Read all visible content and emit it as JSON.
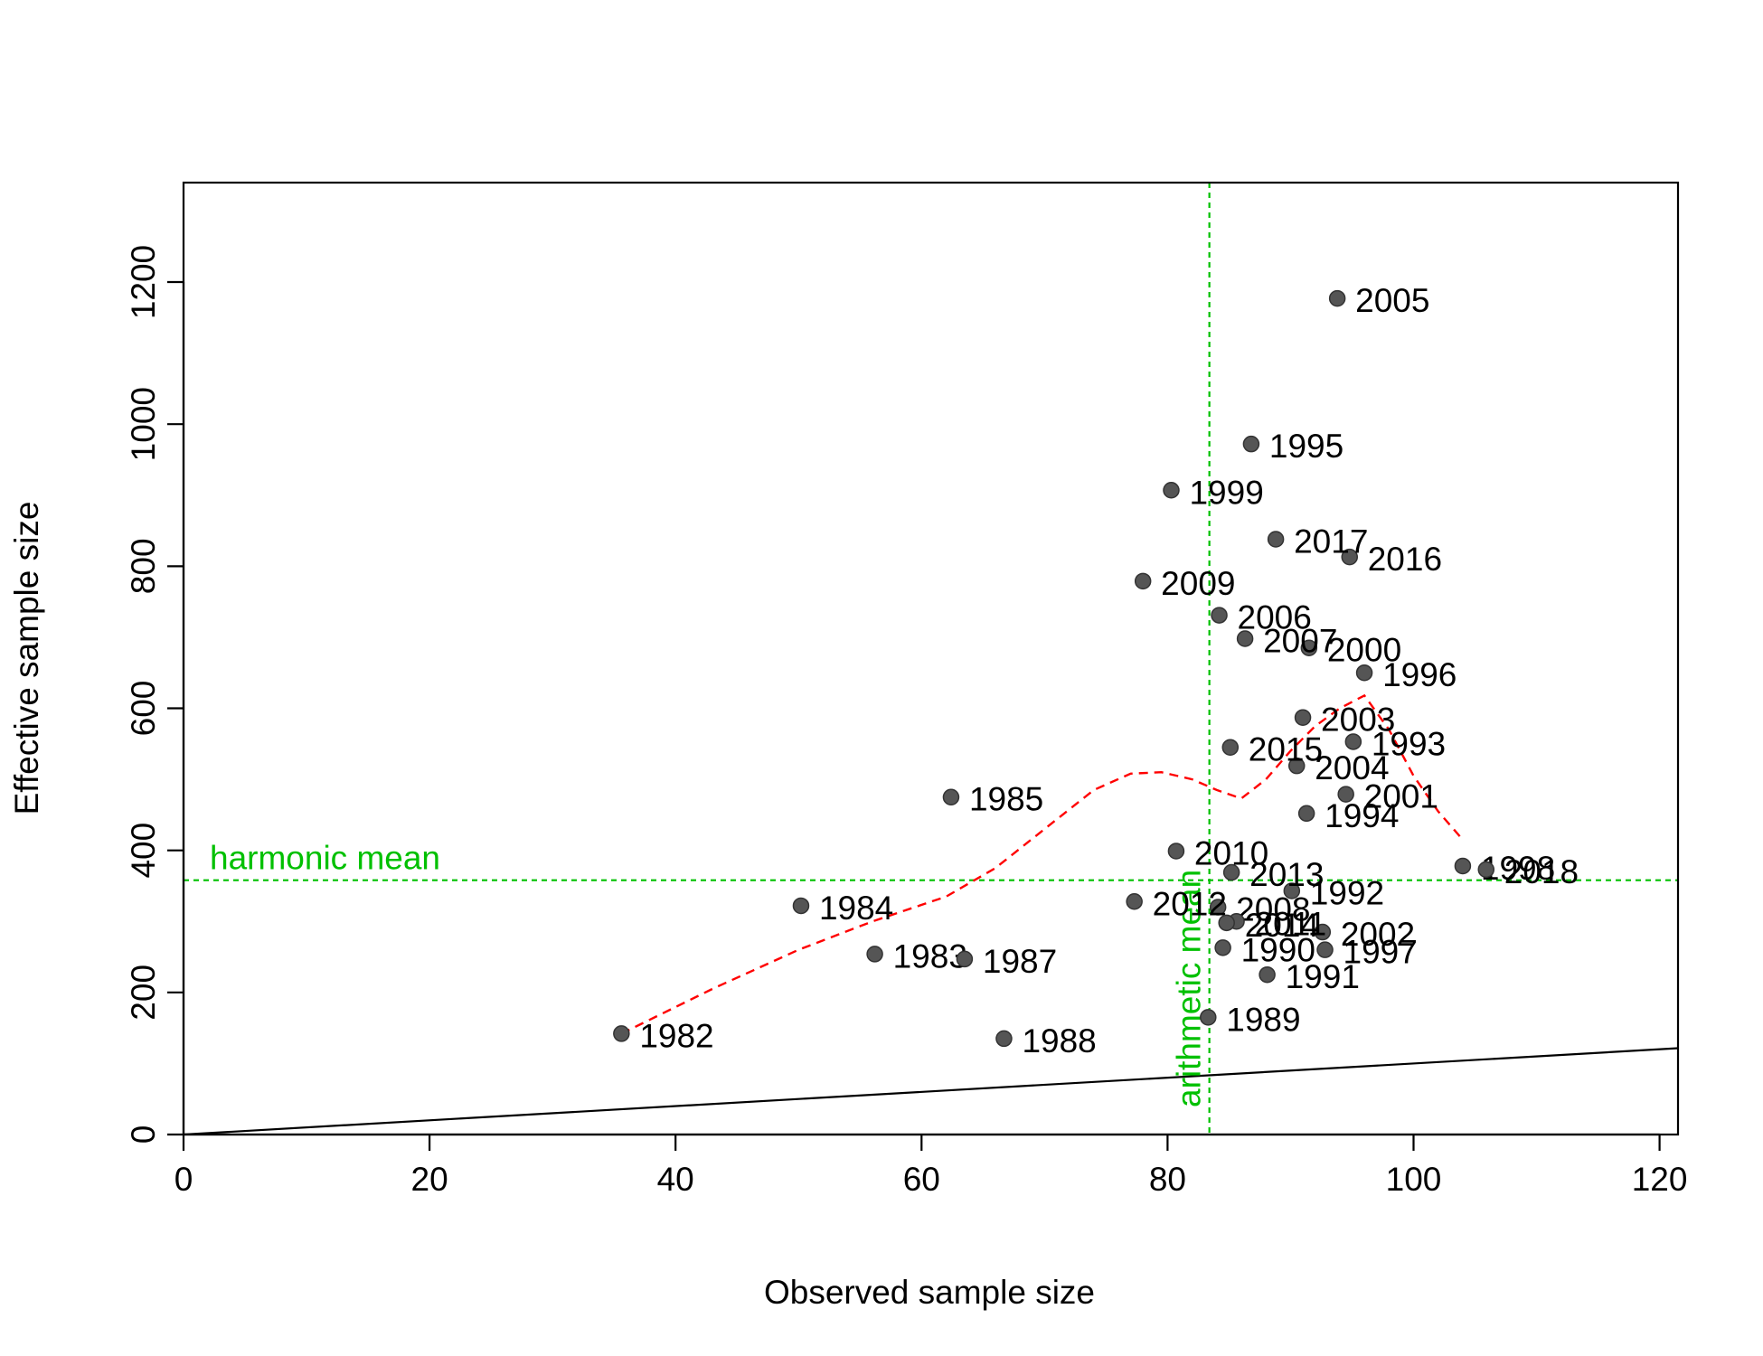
{
  "chart_data": {
    "type": "scatter",
    "title": "",
    "xlabel": "Observed sample size",
    "ylabel": "Effective sample size",
    "xlim": [
      0,
      121.5
    ],
    "ylim": [
      0,
      1340
    ],
    "xticks": [
      0,
      20,
      40,
      60,
      80,
      100,
      120
    ],
    "yticks": [
      0,
      200,
      400,
      600,
      800,
      1000,
      1200
    ],
    "grid": false,
    "colors": {
      "points": "#555555",
      "point_edge": "#333333",
      "smoother": "#ff0000",
      "reference": "#00c000",
      "one_to_one": "#000000"
    },
    "points": [
      {
        "label": "1982",
        "x": 35.6,
        "y": 142
      },
      {
        "label": "1983",
        "x": 56.2,
        "y": 254
      },
      {
        "label": "1984",
        "x": 50.2,
        "y": 322
      },
      {
        "label": "1985",
        "x": 62.4,
        "y": 475
      },
      {
        "label": "1987",
        "x": 63.5,
        "y": 247
      },
      {
        "label": "1988",
        "x": 66.7,
        "y": 135
      },
      {
        "label": "1989",
        "x": 83.3,
        "y": 165
      },
      {
        "label": "1990",
        "x": 84.5,
        "y": 263
      },
      {
        "label": "1991",
        "x": 88.1,
        "y": 225
      },
      {
        "label": "1992",
        "x": 90.1,
        "y": 343
      },
      {
        "label": "1993",
        "x": 95.1,
        "y": 553
      },
      {
        "label": "1994",
        "x": 91.3,
        "y": 452
      },
      {
        "label": "1995",
        "x": 86.8,
        "y": 972
      },
      {
        "label": "1996",
        "x": 96.0,
        "y": 650
      },
      {
        "label": "1997",
        "x": 92.8,
        "y": 260
      },
      {
        "label": "1998",
        "x": 104.0,
        "y": 378
      },
      {
        "label": "1999",
        "x": 80.3,
        "y": 907
      },
      {
        "label": "2000",
        "x": 91.5,
        "y": 685
      },
      {
        "label": "2001",
        "x": 94.5,
        "y": 479
      },
      {
        "label": "2002",
        "x": 92.6,
        "y": 285
      },
      {
        "label": "2003",
        "x": 91.0,
        "y": 587
      },
      {
        "label": "2004",
        "x": 90.5,
        "y": 519
      },
      {
        "label": "2005",
        "x": 93.8,
        "y": 1177
      },
      {
        "label": "2006",
        "x": 84.2,
        "y": 731
      },
      {
        "label": "2007",
        "x": 86.3,
        "y": 698
      },
      {
        "label": "2008",
        "x": 84.1,
        "y": 320
      },
      {
        "label": "2009",
        "x": 78.0,
        "y": 779
      },
      {
        "label": "2010",
        "x": 80.7,
        "y": 399
      },
      {
        "label": "2011",
        "x": 85.6,
        "y": 300
      },
      {
        "label": "2012",
        "x": 77.3,
        "y": 328
      },
      {
        "label": "2013",
        "x": 85.2,
        "y": 369
      },
      {
        "label": "2014",
        "x": 84.8,
        "y": 298
      },
      {
        "label": "2015",
        "x": 85.1,
        "y": 545
      },
      {
        "label": "2016",
        "x": 94.8,
        "y": 813
      },
      {
        "label": "2017",
        "x": 88.8,
        "y": 838
      },
      {
        "label": "2018",
        "x": 105.9,
        "y": 373
      }
    ],
    "smoother": {
      "x": [
        35.6,
        43,
        50,
        56,
        62,
        66,
        70,
        74,
        77,
        79.5,
        82,
        84,
        86,
        88,
        90,
        92,
        94,
        96,
        98,
        100,
        102,
        104
      ],
      "y": [
        142,
        205,
        260,
        300,
        335,
        375,
        430,
        485,
        508,
        510,
        500,
        485,
        473,
        500,
        540,
        575,
        600,
        618,
        570,
        505,
        455,
        415
      ]
    },
    "one_to_one": {
      "x": [
        0,
        121.5
      ],
      "y": [
        0,
        121.5
      ]
    },
    "harmonic_mean": {
      "value": 358,
      "label": "harmonic mean"
    },
    "arithmetic_mean": {
      "value": 83.4,
      "label": "arithmetic mean"
    }
  }
}
